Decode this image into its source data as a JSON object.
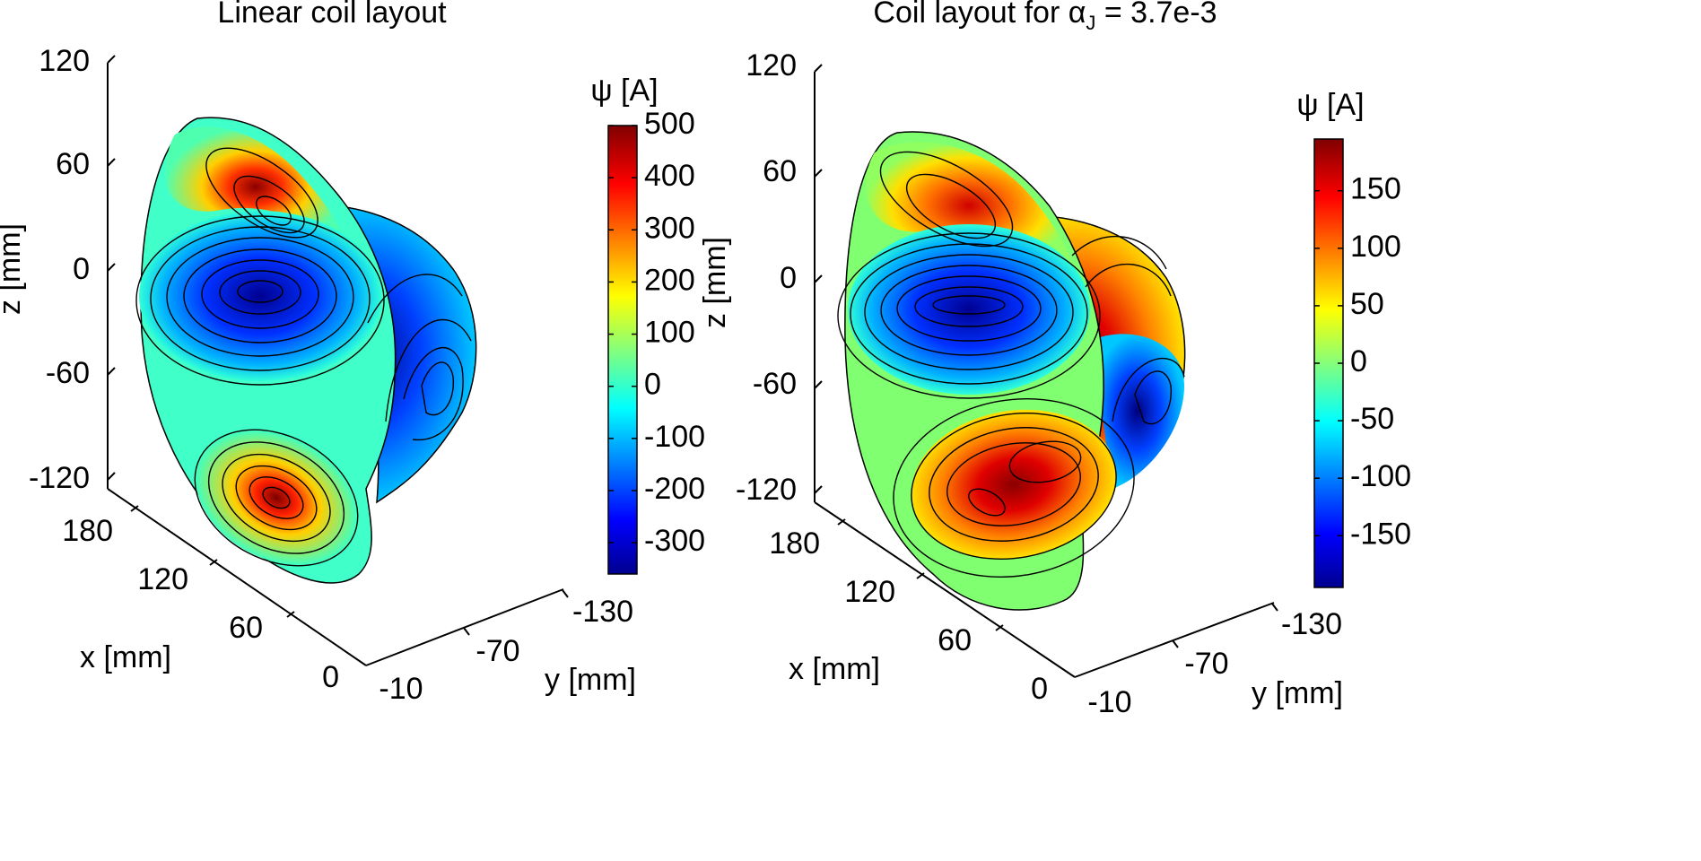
{
  "chart_data": [
    {
      "type": "surface3d",
      "title": "Linear coil layout",
      "xlabel": "x [mm]",
      "ylabel": "y [mm]",
      "zlabel": "z [mm]",
      "x_ticks": [
        "0",
        "60",
        "120",
        "180"
      ],
      "y_ticks": [
        "-10",
        "-70",
        "-130"
      ],
      "z_ticks": [
        "120",
        "60",
        "0",
        "-60",
        "-120"
      ],
      "colorbar": {
        "label": "ψ [A]",
        "range": [
          -360,
          500
        ],
        "ticks": [
          "500",
          "400",
          "300",
          "200",
          "100",
          "0",
          "-100",
          "-200",
          "-300"
        ],
        "colormap": [
          "#00008f",
          "#0000ff",
          "#00ffff",
          "#ffff00",
          "#ff0000",
          "#800000"
        ]
      },
      "features": [
        {
          "region": "upper lobe",
          "value": 380
        },
        {
          "region": "central lobe",
          "value": -330
        },
        {
          "region": "back lobe",
          "value": -300
        },
        {
          "region": "lower lobe",
          "value": 480
        }
      ]
    },
    {
      "type": "surface3d",
      "title_prefix": "Coil layout for α",
      "title_sub": "J",
      "title_suffix": " = 3.7e-3",
      "xlabel": "x [mm]",
      "ylabel": "y [mm]",
      "zlabel": "z [mm]",
      "x_ticks": [
        "0",
        "60",
        "120",
        "180"
      ],
      "y_ticks": [
        "-10",
        "-70",
        "-130"
      ],
      "z_ticks": [
        "120",
        "60",
        "0",
        "-60",
        "-120"
      ],
      "colorbar": {
        "label": "ψ [A]",
        "range": [
          -195,
          195
        ],
        "ticks": [
          "150",
          "100",
          "50",
          "0",
          "-50",
          "-100",
          "-150"
        ],
        "colormap": [
          "#00008f",
          "#0000ff",
          "#00ffff",
          "#ffff00",
          "#ff0000",
          "#800000"
        ]
      },
      "features": [
        {
          "region": "upper lobe",
          "value": 160
        },
        {
          "region": "central lobe",
          "value": -170
        },
        {
          "region": "back lobe",
          "value": -185
        },
        {
          "region": "lower lobe",
          "value": 190
        }
      ]
    }
  ]
}
